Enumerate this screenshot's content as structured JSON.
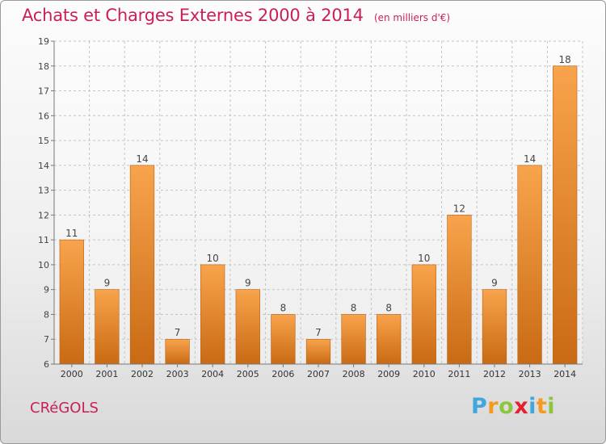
{
  "chart_data": {
    "type": "bar",
    "title": "Achats et Charges Externes 2000 à 2014",
    "subtitle": "(en milliers d'€)",
    "categories": [
      "2000",
      "2001",
      "2002",
      "2003",
      "2004",
      "2005",
      "2006",
      "2007",
      "2008",
      "2009",
      "2010",
      "2011",
      "2012",
      "2013",
      "2014"
    ],
    "values": [
      11,
      9,
      14,
      7,
      10,
      9,
      8,
      7,
      8,
      8,
      10,
      12,
      9,
      14,
      18
    ],
    "data_labels": [
      "11",
      "9",
      "14",
      "7",
      "10",
      "9",
      "8",
      "7",
      "8",
      "8",
      "10",
      "12",
      "9",
      "14",
      "18"
    ],
    "ylim": [
      6,
      19
    ],
    "yticks": [
      6,
      7,
      8,
      9,
      10,
      11,
      12,
      13,
      14,
      15,
      16,
      17,
      18,
      19
    ],
    "ytick_labels": [
      "6",
      "7",
      "8",
      "9",
      "10",
      "11",
      "12",
      "13",
      "14",
      "15",
      "16",
      "17",
      "18",
      "19"
    ],
    "grid": true,
    "bar_color_top": "#f8a44c",
    "bar_color_bottom": "#c96a14"
  },
  "commune": "CRéGOLS",
  "brand": {
    "letters": [
      "P",
      "r",
      "o",
      "x",
      "i",
      "t",
      "i"
    ],
    "colors": [
      "#3fa7de",
      "#f39a1f",
      "#8cc63f",
      "#e2202f",
      "#3fa7de",
      "#f39a1f",
      "#8cc63f"
    ]
  },
  "colors": {
    "accent": "#c8205c"
  }
}
